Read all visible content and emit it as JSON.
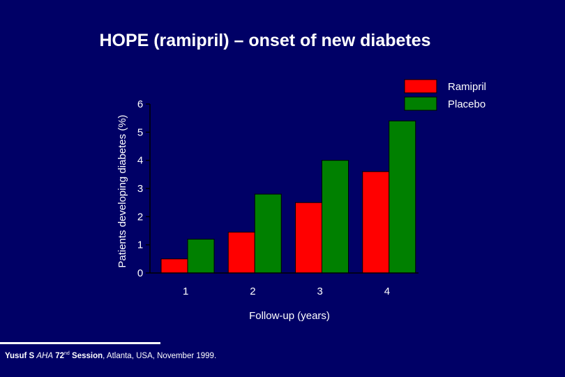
{
  "slide": {
    "title": "HOPE (ramipril) – onset of new diabetes"
  },
  "colors": {
    "background": "#000066",
    "ramipril": "#ff0000",
    "placebo": "#008000",
    "text": "#ffffff"
  },
  "chart_data": {
    "type": "bar",
    "title": "HOPE (ramipril) – onset of new diabetes",
    "xlabel": "Follow-up (years)",
    "ylabel": "Patients developing diabetes (%)",
    "categories": [
      "1",
      "2",
      "3",
      "4"
    ],
    "series": [
      {
        "name": "Ramipril",
        "color": "#ff0000",
        "values": [
          0.5,
          1.45,
          2.5,
          3.6
        ]
      },
      {
        "name": "Placebo",
        "color": "#008000",
        "values": [
          1.2,
          2.8,
          4.0,
          5.4
        ]
      }
    ],
    "yticks": [
      "0",
      "1",
      "2",
      "3",
      "4",
      "5",
      "6"
    ],
    "ylim": [
      0,
      6
    ],
    "legend": "top-right",
    "grid": false
  },
  "citation": {
    "author": "Yusuf S ",
    "journal": "AHA",
    "session_num": " 72",
    "session_sup": "nd",
    "session_word": " Session",
    "rest": ", Atlanta, USA, November 1999."
  }
}
